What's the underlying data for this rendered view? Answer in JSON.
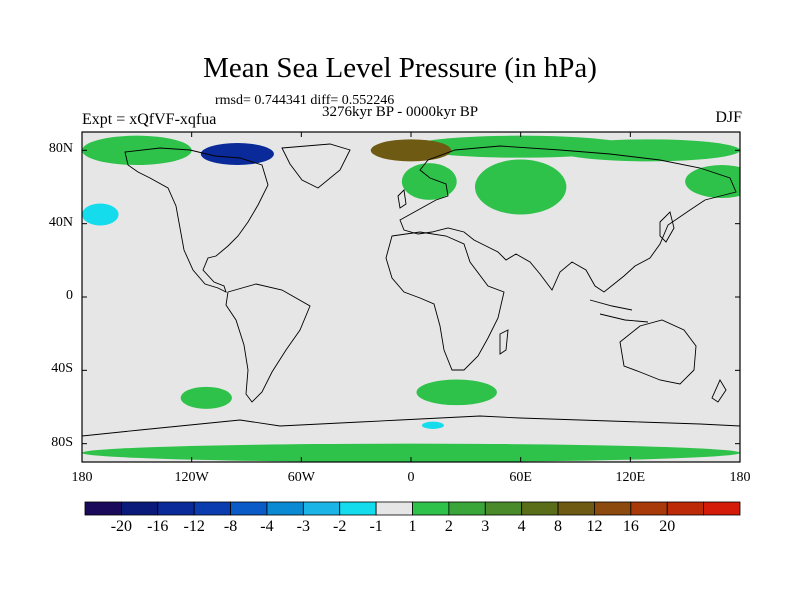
{
  "title": "Mean Sea Level Pressure (in hPa)",
  "stats": "rmsd= 0.744341 diff= 0.552246",
  "period": "3276kyr BP - 0000kyr BP",
  "experiment": "Expt = xQfVF-xqfua",
  "season": "DJF",
  "lat_labels": [
    {
      "text": "80N",
      "lat": 80
    },
    {
      "text": "40N",
      "lat": 40
    },
    {
      "text": "0",
      "lat": 0
    },
    {
      "text": "40S",
      "lat": -40
    },
    {
      "text": "80S",
      "lat": -80
    }
  ],
  "lon_labels": [
    {
      "text": "180",
      "lon": -180
    },
    {
      "text": "120W",
      "lon": -120
    },
    {
      "text": "60W",
      "lon": -60
    },
    {
      "text": "0",
      "lon": 0
    },
    {
      "text": "60E",
      "lon": 60
    },
    {
      "text": "120E",
      "lon": 120
    },
    {
      "text": "180",
      "lon": 180
    }
  ],
  "colorbar": {
    "colors": [
      "#1b0a5a",
      "#0a1a7a",
      "#0a2a9a",
      "#0a3cb0",
      "#0a5ac8",
      "#0a8ad2",
      "#1ab4e6",
      "#14dcec",
      "#e6e6e6",
      "#2ec24a",
      "#3aa63a",
      "#4a8a2a",
      "#5a6e1a",
      "#6e5a12",
      "#8c4a0e",
      "#a83a0a",
      "#bc2a08",
      "#d41a08"
    ],
    "labels": [
      "-20",
      "-16",
      "-12",
      "-8",
      "-4",
      "-3",
      "-2",
      "-1",
      "1",
      "2",
      "3",
      "4",
      "8",
      "12",
      "16",
      "20"
    ]
  },
  "chart_data": {
    "type": "heatmap",
    "title": "Mean Sea Level Pressure (in hPa)",
    "variable": "Mean Sea Level Pressure",
    "units": "hPa",
    "experiment": "xQfVF-xqfua",
    "period": "3276kyr BP - 0000kyr BP",
    "season": "DJF",
    "rmsd": 0.744341,
    "diff": 0.552246,
    "xlim": [
      -180,
      180
    ],
    "ylim": [
      -90,
      90
    ],
    "levels": [
      -20,
      -16,
      -12,
      -8,
      -4,
      -3,
      -2,
      -1,
      1,
      2,
      3,
      4,
      8,
      12,
      16,
      20
    ],
    "regions": [
      {
        "name": "arctic-north-america",
        "lon": -150,
        "lat": 80,
        "rx": 30,
        "ry": 8,
        "class": "1-2"
      },
      {
        "name": "arctic-siberia",
        "lon": 60,
        "lat": 82,
        "rx": 60,
        "ry": 6,
        "class": "1-2"
      },
      {
        "name": "arctic-east",
        "lon": 130,
        "lat": 80,
        "rx": 50,
        "ry": 6,
        "class": "1-2"
      },
      {
        "name": "russia-central",
        "lon": 0,
        "lat": 80,
        "rx": 22,
        "ry": 6,
        "class": "4-8"
      },
      {
        "name": "scandinavia",
        "lon": 10,
        "lat": 63,
        "rx": 15,
        "ry": 10,
        "class": "1-2"
      },
      {
        "name": "central-asia",
        "lon": 60,
        "lat": 60,
        "rx": 25,
        "ry": 15,
        "class": "1-2"
      },
      {
        "name": "north-pacific-east",
        "lon": 170,
        "lat": 63,
        "rx": 20,
        "ry": 9,
        "class": "1-2"
      },
      {
        "name": "greenland-low",
        "lon": -95,
        "lat": 78,
        "rx": 20,
        "ry": 6,
        "class": "-16--4"
      },
      {
        "name": "north-pacific-low",
        "lon": -170,
        "lat": 45,
        "rx": 10,
        "ry": 6,
        "class": "-2--1"
      },
      {
        "name": "south-atlantic",
        "lon": 25,
        "lat": -52,
        "rx": 22,
        "ry": 7,
        "class": "1-2"
      },
      {
        "name": "south-pacific",
        "lon": -112,
        "lat": -55,
        "rx": 14,
        "ry": 6,
        "class": "1-2"
      },
      {
        "name": "antarctica-low",
        "lon": 12,
        "lat": -70,
        "rx": 6,
        "ry": 2,
        "class": "-2--1"
      },
      {
        "name": "antarctic-ring",
        "lon": 0,
        "lat": -85,
        "rx": 180,
        "ry": 5,
        "class": "1-2"
      }
    ]
  }
}
